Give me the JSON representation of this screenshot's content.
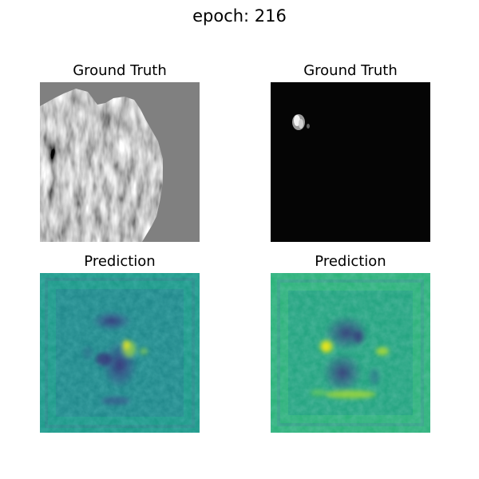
{
  "figure": {
    "title": "epoch: 216"
  },
  "panels": [
    {
      "title": "Ground Truth",
      "colormap": "gray"
    },
    {
      "title": "Ground Truth",
      "colormap": "gray"
    },
    {
      "title": "Prediction",
      "colormap": "viridis"
    },
    {
      "title": "Prediction",
      "colormap": "viridis"
    }
  ],
  "colors": {
    "gt_background_1": "#808080",
    "gt_background_2": "#050505",
    "pred_base": "#1f9a8a",
    "pred_dark": "#3b2a78",
    "pred_bright": "#e8e419"
  }
}
